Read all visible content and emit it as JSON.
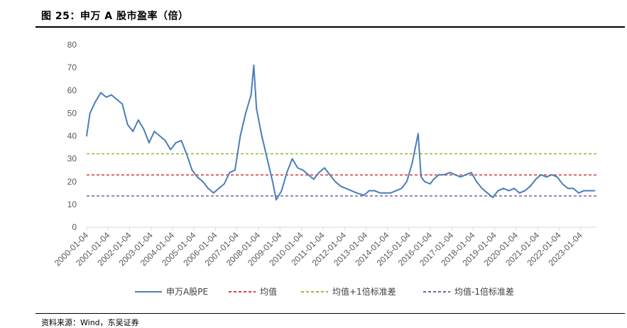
{
  "figure": {
    "title": "图 25：申万 A 股市盈率（倍）",
    "source": "资料来源：Wind，东吴证券"
  },
  "colors": {
    "pe_line": "#4a7ebb",
    "mean_line": "#d9413a",
    "plus_line": "#92c13f",
    "minus_line": "#7e5fa6",
    "axis": "#d9d9d9",
    "tick_text": "#595959"
  },
  "chart_data": {
    "type": "line",
    "title": "",
    "xlabel": "",
    "ylabel": "",
    "ylim": [
      0,
      80
    ],
    "yticks": [
      0,
      10,
      20,
      30,
      40,
      50,
      60,
      70,
      80
    ],
    "grid": false,
    "legend_position": "bottom",
    "x_tick_labels": [
      "2000-01-04",
      "2001-01-04",
      "2002-01-04",
      "2003-01-04",
      "2004-01-04",
      "2005-01-04",
      "2006-01-04",
      "2007-01-04",
      "2008-01-04",
      "2009-01-04",
      "2010-01-04",
      "2011-01-04",
      "2012-01-04",
      "2013-01-04",
      "2014-01-04",
      "2015-01-04",
      "2016-01-04",
      "2017-01-04",
      "2018-01-04",
      "2019-01-04",
      "2020-01-04",
      "2021-01-04",
      "2022-01-04",
      "2023-01-04"
    ],
    "x_range": [
      "2000-01-04",
      "2023-09-30"
    ],
    "series": [
      {
        "name": "申万A股PE",
        "style": "solid",
        "x": [
          "2000-01-04",
          "2000-03-01",
          "2000-06-01",
          "2000-09-01",
          "2000-12-01",
          "2001-03-01",
          "2001-06-01",
          "2001-09-01",
          "2001-12-01",
          "2002-03-01",
          "2002-06-01",
          "2002-09-01",
          "2002-12-01",
          "2003-03-01",
          "2003-06-01",
          "2003-09-01",
          "2003-12-01",
          "2004-03-01",
          "2004-06-01",
          "2004-09-01",
          "2004-12-01",
          "2005-03-01",
          "2005-06-01",
          "2005-09-01",
          "2005-12-01",
          "2006-03-01",
          "2006-06-01",
          "2006-09-01",
          "2006-12-01",
          "2007-03-01",
          "2007-06-01",
          "2007-09-01",
          "2007-10-16",
          "2007-12-01",
          "2008-03-01",
          "2008-06-01",
          "2008-09-01",
          "2008-11-01",
          "2009-02-01",
          "2009-05-01",
          "2009-08-01",
          "2009-11-01",
          "2010-02-01",
          "2010-05-01",
          "2010-08-01",
          "2010-11-01",
          "2011-02-01",
          "2011-05-01",
          "2011-08-01",
          "2011-11-01",
          "2012-02-01",
          "2012-05-01",
          "2012-08-01",
          "2012-12-01",
          "2013-03-01",
          "2013-06-01",
          "2013-09-01",
          "2013-12-01",
          "2014-03-01",
          "2014-06-01",
          "2014-09-01",
          "2014-12-01",
          "2015-03-01",
          "2015-06-12",
          "2015-08-01",
          "2015-10-01",
          "2016-01-01",
          "2016-03-01",
          "2016-06-01",
          "2016-09-01",
          "2016-12-01",
          "2017-03-01",
          "2017-06-01",
          "2017-09-01",
          "2017-12-01",
          "2018-03-01",
          "2018-06-01",
          "2018-09-01",
          "2018-12-01",
          "2019-03-01",
          "2019-06-01",
          "2019-09-01",
          "2019-12-01",
          "2020-03-01",
          "2020-06-01",
          "2020-09-01",
          "2020-12-01",
          "2021-03-01",
          "2021-06-01",
          "2021-09-01",
          "2021-12-01",
          "2022-03-01",
          "2022-06-01",
          "2022-09-01",
          "2022-12-01",
          "2023-03-01",
          "2023-06-01",
          "2023-09-01"
        ],
        "values": [
          40,
          50,
          55,
          59,
          57,
          58,
          56,
          54,
          45,
          42,
          47,
          43,
          37,
          42,
          40,
          38,
          34,
          37,
          38,
          32,
          25,
          22,
          20,
          17,
          15,
          17,
          19,
          24,
          25,
          40,
          50,
          58,
          71,
          52,
          40,
          30,
          20,
          12,
          16,
          24,
          30,
          26,
          25,
          23,
          21,
          24,
          26,
          23,
          20,
          18,
          17,
          16,
          15,
          14,
          16,
          16,
          15,
          15,
          15,
          16,
          17,
          20,
          28,
          41,
          22,
          20,
          19,
          21,
          23,
          23,
          24,
          23,
          22,
          23,
          24,
          20,
          17,
          15,
          13,
          16,
          17,
          16,
          17,
          15,
          16,
          18,
          21,
          23,
          22,
          23,
          22,
          19,
          17,
          17,
          15,
          16,
          16,
          16
        ]
      },
      {
        "name": "均值",
        "style": "dashed",
        "value": 22.9
      },
      {
        "name": "均值+1倍标准差",
        "style": "dashed",
        "value": 32.2
      },
      {
        "name": "均值-1倍标准差",
        "style": "dashed",
        "value": 13.7
      }
    ]
  }
}
